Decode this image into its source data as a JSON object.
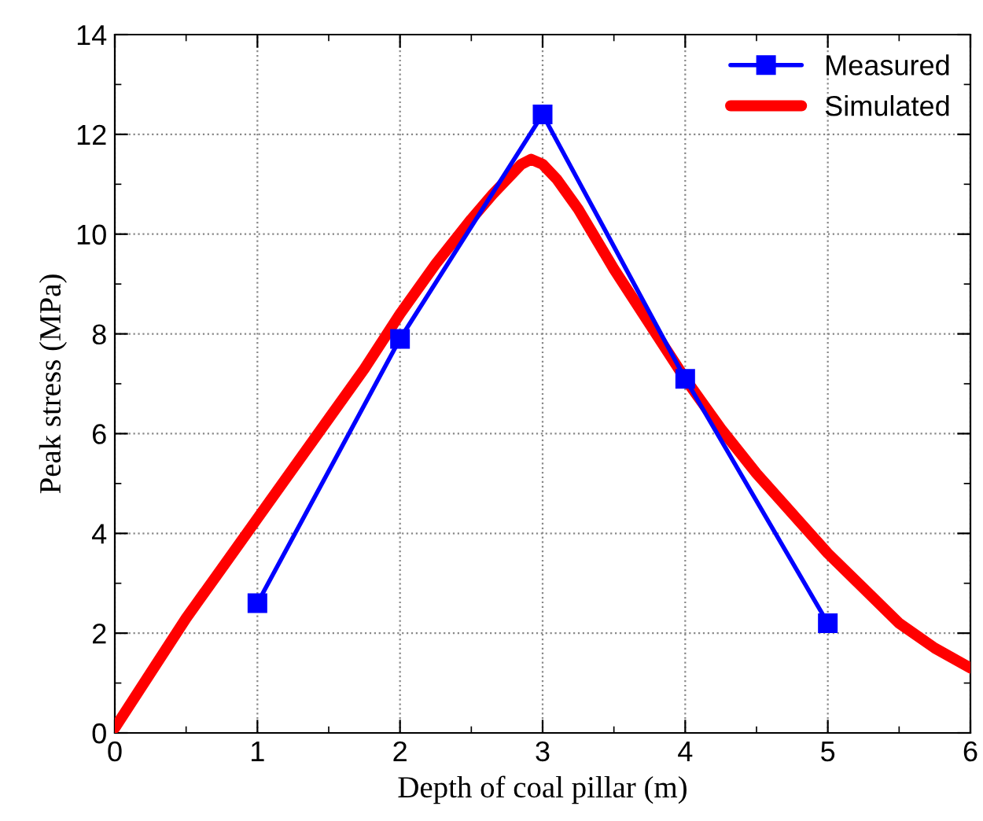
{
  "chart_data": {
    "type": "line",
    "xlabel": "Depth of coal pillar (m)",
    "ylabel": "Peak stress (MPa)",
    "xlim": [
      0,
      6
    ],
    "xticks": [
      0,
      1,
      2,
      3,
      4,
      5,
      6
    ],
    "ylim": [
      0,
      14
    ],
    "yticks": [
      0,
      2,
      4,
      6,
      8,
      10,
      12,
      14
    ],
    "grid": true,
    "legend": "top right",
    "series": [
      {
        "name": "Measured",
        "color": "#0000ff",
        "marker": "square",
        "x": [
          1,
          2,
          3,
          4,
          5
        ],
        "values": [
          2.6,
          7.9,
          12.4,
          7.1,
          2.2
        ]
      },
      {
        "name": "Simulated",
        "color": "#ff0000",
        "marker": "none",
        "x": [
          0,
          0.25,
          0.5,
          0.75,
          1,
          1.25,
          1.5,
          1.75,
          2,
          2.25,
          2.5,
          2.65,
          2.75,
          2.85,
          2.92,
          3.0,
          3.1,
          3.25,
          3.5,
          3.75,
          4,
          4.25,
          4.5,
          4.75,
          5,
          5.25,
          5.5,
          5.75,
          6
        ],
        "values": [
          0.1,
          1.2,
          2.3,
          3.3,
          4.3,
          5.3,
          6.3,
          7.3,
          8.4,
          9.4,
          10.3,
          10.8,
          11.1,
          11.4,
          11.5,
          11.4,
          11.1,
          10.5,
          9.3,
          8.2,
          7.1,
          6.1,
          5.2,
          4.4,
          3.6,
          2.9,
          2.2,
          1.7,
          1.3
        ]
      }
    ]
  }
}
